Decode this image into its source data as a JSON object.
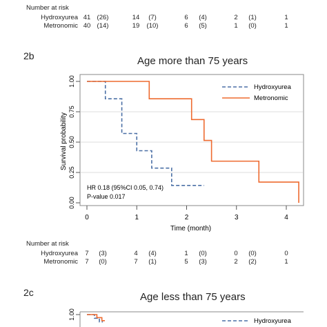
{
  "top_risk": {
    "header": "Number at risk",
    "rows": [
      {
        "label": "Hydroxyurea",
        "values": [
          "41",
          "(26)",
          "14",
          "(7)",
          "6",
          "(4)",
          "2",
          "(1)",
          "1"
        ]
      },
      {
        "label": "Metronomic",
        "values": [
          "40",
          "(14)",
          "19",
          "(10)",
          "6",
          "(5)",
          "1",
          "(0)",
          "1"
        ]
      }
    ]
  },
  "panel_b": {
    "tag": "2b",
    "title": "Age more than 75 years",
    "annotation_line1": "HR 0.18 (95%CI 0.05, 0.74)",
    "annotation_line2": "P-value 0.017"
  },
  "bottom_risk": {
    "header": "Number at risk",
    "rows": [
      {
        "label": "Hydroxyurea",
        "values": [
          "7",
          "(3)",
          "4",
          "(4)",
          "1",
          "(0)",
          "0",
          "(0)",
          "0"
        ]
      },
      {
        "label": "Metronomic",
        "values": [
          "7",
          "(0)",
          "7",
          "(1)",
          "5",
          "(3)",
          "2",
          "(2)",
          "1"
        ]
      }
    ]
  },
  "panel_c": {
    "tag": "2c",
    "title": "Age less than 75 years",
    "legend_hydroxyurea": "Hydroxyurea"
  },
  "colors": {
    "hydroxyurea": "#4a6fa5",
    "metronomic": "#ee6a2f"
  },
  "chart_data": [
    {
      "type": "line",
      "title": "Age more than 75 years",
      "xlabel": "Time (month)",
      "ylabel": "Survival probability",
      "xlim": [
        0,
        4.3
      ],
      "ylim": [
        0,
        1
      ],
      "xticks": [
        "0",
        "1",
        "2",
        "3",
        "4"
      ],
      "yticks": [
        "0.00",
        "0.25",
        "0.50",
        "0.75",
        "1.00"
      ],
      "grid": true,
      "legend_position": "top-right",
      "series": [
        {
          "name": "Hydroxyurea",
          "style": "dashed",
          "color": "#4a6fa5",
          "x": [
            0,
            0.37,
            0.37,
            0.7,
            0.7,
            1.0,
            1.0,
            1.3,
            1.3,
            1.7,
            1.7,
            2.35
          ],
          "y": [
            1.0,
            1.0,
            0.857,
            0.857,
            0.571,
            0.571,
            0.429,
            0.429,
            0.286,
            0.286,
            0.143,
            0.143
          ]
        },
        {
          "name": "Metronomic",
          "style": "solid",
          "color": "#ee6a2f",
          "x": [
            0,
            1.25,
            1.25,
            2.1,
            2.1,
            2.35,
            2.35,
            2.5,
            2.5,
            3.45,
            3.45,
            4.25,
            4.25
          ],
          "y": [
            1.0,
            1.0,
            0.857,
            0.857,
            0.686,
            0.686,
            0.514,
            0.514,
            0.343,
            0.343,
            0.171,
            0.171,
            0.0
          ]
        }
      ]
    },
    {
      "type": "line",
      "title": "Age less than 75 years",
      "ylim": [
        0,
        1
      ],
      "yticks": [
        "1.00"
      ],
      "legend_position": "top-right",
      "series": [
        {
          "name": "Hydroxyurea",
          "style": "dashed",
          "color": "#4a6fa5",
          "x": [
            0,
            0.15,
            0.15,
            0.25,
            0.25,
            0.32
          ],
          "y": [
            1.0,
            1.0,
            0.97,
            0.97,
            0.94,
            0.94
          ]
        },
        {
          "name": "",
          "style": "solid",
          "color": "#ee6a2f",
          "x": [
            0,
            0.2,
            0.2,
            0.3,
            0.3,
            0.36
          ],
          "y": [
            1.0,
            1.0,
            0.975,
            0.975,
            0.95,
            0.95
          ]
        }
      ]
    }
  ]
}
